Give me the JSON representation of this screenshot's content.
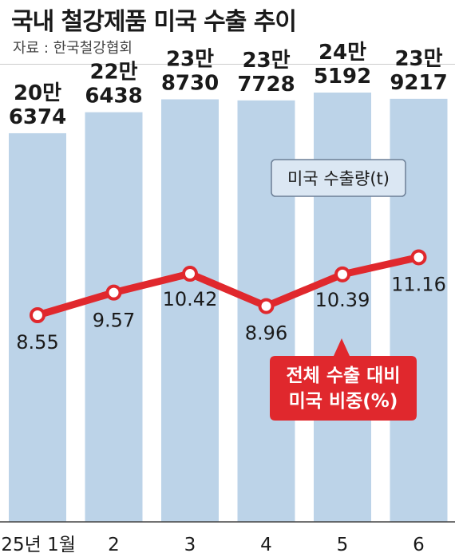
{
  "header": {
    "title": "국내 철강제품 미국 수출 추이",
    "source": "자료 : 한국철강협회"
  },
  "legend": {
    "bar_label": "미국 수출량(t)",
    "line_label_line1": "전체 수출 대비",
    "line_label_line2": "미국 비중(%)"
  },
  "colors": {
    "bar": "#bcd3e8",
    "line": "#e0282d",
    "legend_box": "#dbe7f3",
    "legend_border": "#6c7f96",
    "axis": "#444444"
  },
  "chart_data": {
    "type": "bar",
    "categories": [
      "'25년 1월",
      "2",
      "3",
      "4",
      "5",
      "6"
    ],
    "series": [
      {
        "name": "미국 수출량(t)",
        "type": "bar",
        "values": [
          206374,
          226438,
          238730,
          237728,
          245192,
          239217
        ],
        "labels": [
          [
            "20만",
            "6374"
          ],
          [
            "22만",
            "6438"
          ],
          [
            "23만",
            "8730"
          ],
          [
            "23만",
            "7728"
          ],
          [
            "24만",
            "5192"
          ],
          [
            "23만",
            "9217"
          ]
        ]
      },
      {
        "name": "전체 수출 대비 미국 비중(%)",
        "type": "line",
        "values": [
          8.55,
          9.57,
          10.42,
          8.96,
          10.39,
          11.16
        ],
        "labels": [
          "8.55",
          "9.57",
          "10.42",
          "8.96",
          "10.39",
          "11.16"
        ]
      }
    ]
  }
}
